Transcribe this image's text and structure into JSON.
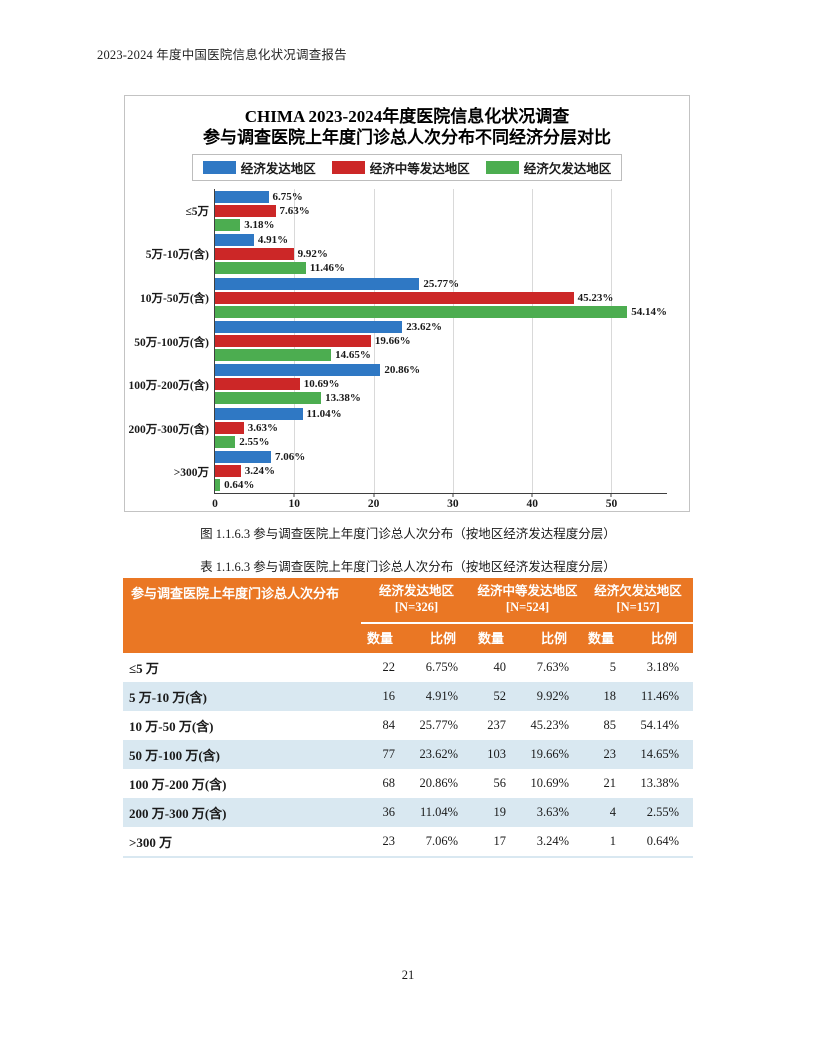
{
  "page": {
    "header": "2023-2024 年度中国医院信息化状况调查报告",
    "page_number": "21"
  },
  "figure": {
    "caption": "图 1.1.6.3  参与调查医院上年度门诊总人次分布（按地区经济发达程度分层）"
  },
  "chart_data": {
    "type": "bar",
    "orientation": "horizontal",
    "title_line1": "CHIMA 2023-2024年度医院信息化状况调查",
    "title_line2": "参与调查医院上年度门诊总人次分布不同经济分层对比",
    "categories": [
      "≤5万",
      "5万-10万(含)",
      "10万-50万(含)",
      "50万-100万(含)",
      "100万-200万(含)",
      "200万-300万(含)",
      ">300万"
    ],
    "series": [
      {
        "name": "经济发达地区",
        "color": "#2f78c4",
        "values": [
          6.75,
          4.91,
          25.77,
          23.62,
          20.86,
          11.04,
          7.06
        ]
      },
      {
        "name": "经济中等发达地区",
        "color": "#cc2727",
        "values": [
          7.63,
          9.92,
          45.23,
          19.66,
          10.69,
          3.63,
          3.24
        ]
      },
      {
        "name": "经济欠发达地区",
        "color": "#4cad50",
        "values": [
          3.18,
          11.46,
          54.14,
          14.65,
          13.38,
          2.55,
          0.64
        ]
      }
    ],
    "value_suffix": "%",
    "xlim": [
      0,
      57
    ],
    "xticks": [
      0,
      10,
      20,
      30,
      40,
      50
    ],
    "grid": true,
    "legend_position": "top"
  },
  "table": {
    "caption": "表 1.1.6.3  参与调查医院上年度门诊总人次分布（按地区经济发达程度分层）",
    "row_header": "参与调查医院上年度门诊总人次分布",
    "groups": [
      {
        "label": "经济发达地区 [N=326]"
      },
      {
        "label": "经济中等发达地区 [N=524]"
      },
      {
        "label": "经济欠发达地区 [N=157]"
      }
    ],
    "subheaders": [
      "数量",
      "比例"
    ],
    "rows": [
      {
        "label": "≤5 万",
        "cells": [
          "22",
          "6.75%",
          "40",
          "7.63%",
          "5",
          "3.18%"
        ]
      },
      {
        "label": "5 万-10 万(含)",
        "cells": [
          "16",
          "4.91%",
          "52",
          "9.92%",
          "18",
          "11.46%"
        ]
      },
      {
        "label": "10 万-50 万(含)",
        "cells": [
          "84",
          "25.77%",
          "237",
          "45.23%",
          "85",
          "54.14%"
        ]
      },
      {
        "label": "50 万-100 万(含)",
        "cells": [
          "77",
          "23.62%",
          "103",
          "19.66%",
          "23",
          "14.65%"
        ]
      },
      {
        "label": "100 万-200 万(含)",
        "cells": [
          "68",
          "20.86%",
          "56",
          "10.69%",
          "21",
          "13.38%"
        ]
      },
      {
        "label": "200 万-300 万(含)",
        "cells": [
          "36",
          "11.04%",
          "19",
          "3.63%",
          "4",
          "2.55%"
        ]
      },
      {
        "label": ">300 万",
        "cells": [
          "23",
          "7.06%",
          "17",
          "3.24%",
          "1",
          "0.64%"
        ]
      }
    ],
    "header_bg": "#ea7724",
    "stripe_bg": "#d9e8f1"
  }
}
